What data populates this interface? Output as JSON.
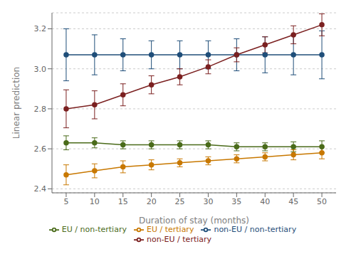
{
  "chart_data": {
    "type": "line",
    "xlabel": "Duration of stay (months)",
    "ylabel": "Linear prediction",
    "x": [
      5,
      10,
      15,
      20,
      25,
      30,
      35,
      40,
      45,
      50
    ],
    "series": [
      {
        "name": "non-EU / non-tertiary",
        "color": "#1f4e79",
        "marker": "circle",
        "values": [
          3.07,
          3.07,
          3.07,
          3.07,
          3.07,
          3.07,
          3.07,
          3.07,
          3.07,
          3.07
        ],
        "yerr_lo": [
          0.13,
          0.1,
          0.08,
          0.07,
          0.07,
          0.07,
          0.08,
          0.09,
          0.1,
          0.12
        ],
        "yerr_hi": [
          0.13,
          0.1,
          0.08,
          0.07,
          0.07,
          0.07,
          0.08,
          0.09,
          0.1,
          0.12
        ]
      },
      {
        "name": "non-EU / tertiary",
        "color": "#7b2020",
        "marker": "circle",
        "values": [
          2.8,
          2.82,
          2.87,
          2.92,
          2.96,
          3.01,
          3.07,
          3.12,
          3.17,
          3.22
        ],
        "yerr_lo": [
          0.095,
          0.07,
          0.055,
          0.045,
          0.04,
          0.035,
          0.035,
          0.04,
          0.045,
          0.055
        ],
        "yerr_hi": [
          0.095,
          0.07,
          0.055,
          0.045,
          0.04,
          0.035,
          0.035,
          0.04,
          0.045,
          0.055
        ]
      },
      {
        "name": "EU / non-tertiary",
        "color": "#4a6b1a",
        "marker": "circle",
        "values": [
          2.63,
          2.63,
          2.62,
          2.62,
          2.62,
          2.62,
          2.61,
          2.61,
          2.61,
          2.61
        ],
        "yerr_lo": [
          0.035,
          0.025,
          0.02,
          0.02,
          0.02,
          0.02,
          0.02,
          0.02,
          0.025,
          0.03
        ],
        "yerr_hi": [
          0.035,
          0.025,
          0.02,
          0.02,
          0.02,
          0.02,
          0.02,
          0.02,
          0.025,
          0.03
        ]
      },
      {
        "name": "EU / tertiary",
        "color": "#c87800",
        "marker": "circle",
        "values": [
          2.47,
          2.49,
          2.51,
          2.52,
          2.53,
          2.54,
          2.55,
          2.56,
          2.57,
          2.58
        ],
        "yerr_lo": [
          0.05,
          0.035,
          0.03,
          0.025,
          0.02,
          0.02,
          0.02,
          0.02,
          0.025,
          0.03
        ],
        "yerr_hi": [
          0.05,
          0.035,
          0.03,
          0.025,
          0.02,
          0.02,
          0.02,
          0.02,
          0.025,
          0.03
        ]
      }
    ],
    "xlim": [
      2.5,
      52.5
    ],
    "ylim": [
      2.38,
      3.28
    ],
    "xticks": [
      5,
      10,
      15,
      20,
      25,
      30,
      35,
      40,
      45,
      50
    ],
    "yticks": [
      2.4,
      2.6,
      2.8,
      {
        "value": 3.0,
        "label": "3.0"
      },
      3.2
    ],
    "grid": true,
    "legend": "bottom"
  }
}
